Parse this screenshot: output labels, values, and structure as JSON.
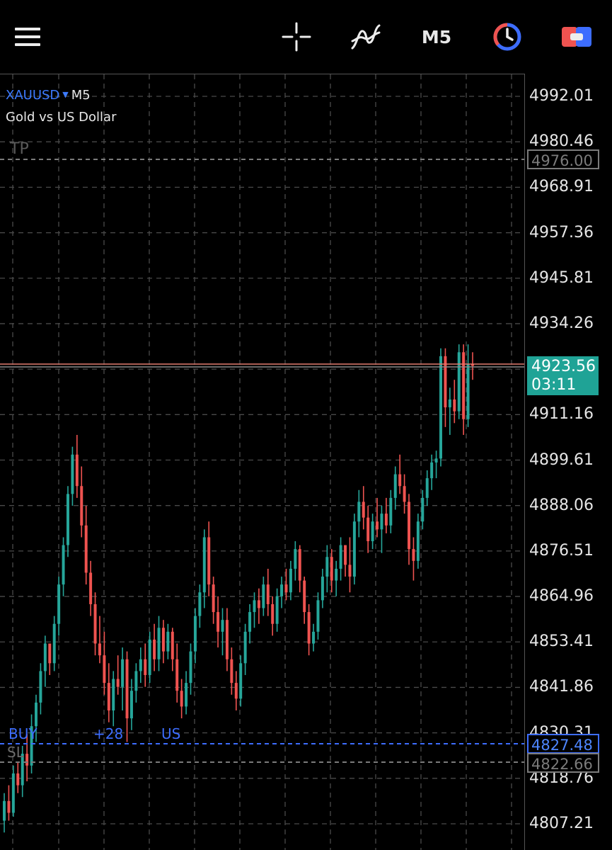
{
  "toolbar": {
    "menu_icon": "hamburger-menu-icon",
    "crosshair_icon": "crosshair-icon",
    "indicators_icon": "indicators-icon",
    "timeframe": "M5",
    "clock_icon": "clock-icon",
    "trade_icon": "trade-icon"
  },
  "symbol": {
    "name": "XAUUSD",
    "dropdown_icon": "triangle-down-icon",
    "timeframe": "M5",
    "description": "Gold vs US Dollar"
  },
  "colors": {
    "bull": "#26a69a",
    "bear": "#ef5350",
    "grid": "#4a4a4a",
    "buy_line": "#3d6dff",
    "bid_line": "#e07a6e",
    "bid_box": "#1fa396"
  },
  "price_axis": {
    "labels": [
      "4992.01",
      "4980.46",
      "4968.91",
      "4957.36",
      "4945.81",
      "4934.26",
      "4911.16",
      "4899.61",
      "4888.06",
      "4876.51",
      "4864.96",
      "4853.41",
      "4841.86",
      "4830.31",
      "4818.76",
      "4807.21"
    ]
  },
  "trade_lines": {
    "tp_label": "TP",
    "tp_price": "4976.00",
    "buy_label": "BUY",
    "buy_profit": "+28",
    "buy_currency": "US",
    "buy_price": "4827.48",
    "sl_label": "SL",
    "sl_price": "4822.66"
  },
  "bid": {
    "price": "4923.56",
    "countdown": "03:11"
  },
  "chart_data": {
    "type": "candlestick",
    "symbol": "XAUUSD",
    "timeframe": "M5",
    "ylim": [
      4803.0,
      5000.0
    ],
    "candles": [
      [
        4808,
        4815,
        4805,
        4813
      ],
      [
        4813,
        4817,
        4808,
        4810
      ],
      [
        4810,
        4822,
        4809,
        4820
      ],
      [
        4820,
        4823,
        4815,
        4817
      ],
      [
        4817,
        4827,
        4814,
        4825
      ],
      [
        4825,
        4830,
        4818,
        4822
      ],
      [
        4822,
        4835,
        4820,
        4832
      ],
      [
        4832,
        4840,
        4828,
        4838
      ],
      [
        4838,
        4848,
        4835,
        4846
      ],
      [
        4846,
        4855,
        4842,
        4853
      ],
      [
        4853,
        4852,
        4845,
        4848
      ],
      [
        4848,
        4860,
        4846,
        4858
      ],
      [
        4858,
        4870,
        4855,
        4868
      ],
      [
        4868,
        4880,
        4865,
        4878
      ],
      [
        4878,
        4893,
        4875,
        4891
      ],
      [
        4891,
        4903,
        4888,
        4901
      ],
      [
        4901,
        4906,
        4890,
        4893
      ],
      [
        4893,
        4898,
        4880,
        4883
      ],
      [
        4883,
        4888,
        4868,
        4871
      ],
      [
        4871,
        4874,
        4860,
        4863
      ],
      [
        4863,
        4866,
        4850,
        4853
      ],
      [
        4853,
        4860,
        4848,
        4850
      ],
      [
        4850,
        4856,
        4840,
        4843
      ],
      [
        4843,
        4848,
        4833,
        4836
      ],
      [
        4836,
        4846,
        4832,
        4844
      ],
      [
        4844,
        4850,
        4840,
        4842
      ],
      [
        4842,
        4852,
        4836,
        4849
      ],
      [
        4849,
        4851,
        4828,
        4834
      ],
      [
        4834,
        4844,
        4831,
        4841
      ],
      [
        4841,
        4848,
        4838,
        4846
      ],
      [
        4846,
        4852,
        4843,
        4849
      ],
      [
        4849,
        4853,
        4842,
        4845
      ],
      [
        4845,
        4856,
        4843,
        4854
      ],
      [
        4854,
        4858,
        4846,
        4849
      ],
      [
        4849,
        4860,
        4846,
        4857
      ],
      [
        4857,
        4859,
        4848,
        4851
      ],
      [
        4851,
        4858,
        4849,
        4856
      ],
      [
        4856,
        4857,
        4846,
        4849
      ],
      [
        4849,
        4853,
        4838,
        4841
      ],
      [
        4841,
        4844,
        4834,
        4837
      ],
      [
        4837,
        4846,
        4835,
        4843
      ],
      [
        4843,
        4853,
        4840,
        4851
      ],
      [
        4851,
        4862,
        4848,
        4860
      ],
      [
        4860,
        4868,
        4857,
        4866
      ],
      [
        4866,
        4882,
        4862,
        4880
      ],
      [
        4880,
        4884,
        4865,
        4868
      ],
      [
        4868,
        4870,
        4858,
        4861
      ],
      [
        4861,
        4865,
        4852,
        4856
      ],
      [
        4856,
        4862,
        4850,
        4859
      ],
      [
        4859,
        4862,
        4846,
        4849
      ],
      [
        4849,
        4852,
        4840,
        4843
      ],
      [
        4843,
        4846,
        4836,
        4839
      ],
      [
        4839,
        4850,
        4837,
        4848
      ],
      [
        4848,
        4858,
        4845,
        4856
      ],
      [
        4856,
        4863,
        4853,
        4861
      ],
      [
        4861,
        4866,
        4857,
        4864
      ],
      [
        4864,
        4867,
        4858,
        4862
      ],
      [
        4862,
        4870,
        4860,
        4868
      ],
      [
        4868,
        4872,
        4860,
        4863
      ],
      [
        4863,
        4865,
        4855,
        4858
      ],
      [
        4858,
        4867,
        4856,
        4865
      ],
      [
        4865,
        4870,
        4862,
        4868
      ],
      [
        4868,
        4872,
        4864,
        4866
      ],
      [
        4866,
        4874,
        4864,
        4872
      ],
      [
        4872,
        4879,
        4869,
        4877
      ],
      [
        4877,
        4878,
        4866,
        4869
      ],
      [
        4869,
        4870,
        4858,
        4861
      ],
      [
        4861,
        4863,
        4850,
        4853
      ],
      [
        4853,
        4858,
        4851,
        4856
      ],
      [
        4856,
        4866,
        4854,
        4864
      ],
      [
        4864,
        4872,
        4862,
        4870
      ],
      [
        4870,
        4878,
        4866,
        4875
      ],
      [
        4875,
        4877,
        4866,
        4869
      ],
      [
        4869,
        4874,
        4865,
        4872
      ],
      [
        4872,
        4880,
        4869,
        4878
      ],
      [
        4878,
        4878,
        4870,
        4873
      ],
      [
        4873,
        4880,
        4866,
        4870
      ],
      [
        4870,
        4886,
        4868,
        4884
      ],
      [
        4884,
        4892,
        4880,
        4889
      ],
      [
        4889,
        4893,
        4882,
        4885
      ],
      [
        4885,
        4888,
        4876,
        4879
      ],
      [
        4879,
        4886,
        4877,
        4884
      ],
      [
        4884,
        4890,
        4880,
        4882
      ],
      [
        4882,
        4888,
        4876,
        4886
      ],
      [
        4886,
        4890,
        4881,
        4883
      ],
      [
        4883,
        4892,
        4881,
        4890
      ],
      [
        4890,
        4898,
        4887,
        4896
      ],
      [
        4896,
        4901,
        4891,
        4893
      ],
      [
        4893,
        4896,
        4886,
        4889
      ],
      [
        4889,
        4891,
        4873,
        4877
      ],
      [
        4877,
        4880,
        4869,
        4874
      ],
      [
        4874,
        4886,
        4872,
        4884
      ],
      [
        4884,
        4892,
        4882,
        4890
      ],
      [
        4890,
        4897,
        4888,
        4895
      ],
      [
        4895,
        4901,
        4892,
        4899
      ],
      [
        4899,
        4902,
        4895,
        4900
      ],
      [
        4900,
        4928,
        4898,
        4926
      ],
      [
        4926,
        4928,
        4908,
        4913
      ],
      [
        4913,
        4918,
        4906,
        4915
      ],
      [
        4915,
        4920,
        4909,
        4912
      ],
      [
        4912,
        4929,
        4910,
        4927
      ],
      [
        4927,
        4929,
        4906,
        4910
      ],
      [
        4910,
        4929,
        4908,
        4924
      ],
      [
        4924,
        4927,
        4920,
        4923.56
      ]
    ]
  }
}
